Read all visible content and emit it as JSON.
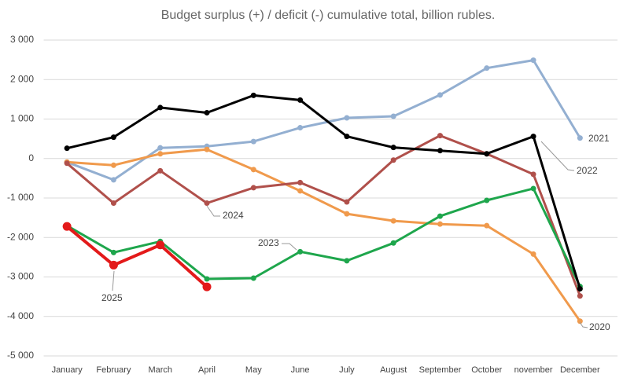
{
  "chart_data": {
    "type": "line",
    "title": "Budget surplus (+) / deficit (-) cumulative total, billion rubles.",
    "categories": [
      "January",
      "February",
      "March",
      "April",
      "May",
      "June",
      "July",
      "August",
      "September",
      "October",
      "november",
      "December"
    ],
    "ylim": [
      -5000,
      3000
    ],
    "yticks": [
      {
        "value": -5000,
        "label": "-5 000"
      },
      {
        "value": -4000,
        "label": "-4 000"
      },
      {
        "value": -3000,
        "label": "-3 000"
      },
      {
        "value": -2000,
        "label": "-2 000"
      },
      {
        "value": -1000,
        "label": "-1 000"
      },
      0,
      {
        "value": 1000,
        "label": "1 000"
      },
      {
        "value": 2000,
        "label": "2 000"
      },
      {
        "value": 3000,
        "label": "3 000"
      }
    ],
    "grid": true,
    "series": [
      {
        "name": "2021",
        "color": "#93afd1",
        "values": [
          -90,
          -540,
          270,
          310,
          430,
          780,
          1030,
          1070,
          1610,
          2290,
          2490,
          520
        ]
      },
      {
        "name": "2020",
        "color": "#f09a4c",
        "values": [
          -90,
          -170,
          120,
          230,
          -280,
          -820,
          -1400,
          -1580,
          -1660,
          -1700,
          -2420,
          -4120
        ]
      },
      {
        "name": "2024",
        "color": "#b0504b",
        "values": [
          -120,
          -1130,
          -310,
          -1130,
          -740,
          -610,
          -1100,
          -40,
          580,
          120,
          -400,
          -3480
        ]
      },
      {
        "name": "2023",
        "color": "#1ea64c",
        "values": [
          -1700,
          -2380,
          -2100,
          -3050,
          -3030,
          -2360,
          -2590,
          -2140,
          -1460,
          -1060,
          -760,
          -3240
        ]
      },
      {
        "name": "2022",
        "color": "#000000",
        "values": [
          260,
          540,
          1290,
          1160,
          1600,
          1480,
          560,
          280,
          200,
          120,
          560,
          -3300
        ]
      },
      {
        "name": "2025",
        "color": "#e31a1a",
        "values": [
          -1720,
          -2700,
          -2190,
          -3250,
          null,
          null,
          null,
          null,
          null,
          null,
          null,
          null
        ]
      }
    ]
  }
}
